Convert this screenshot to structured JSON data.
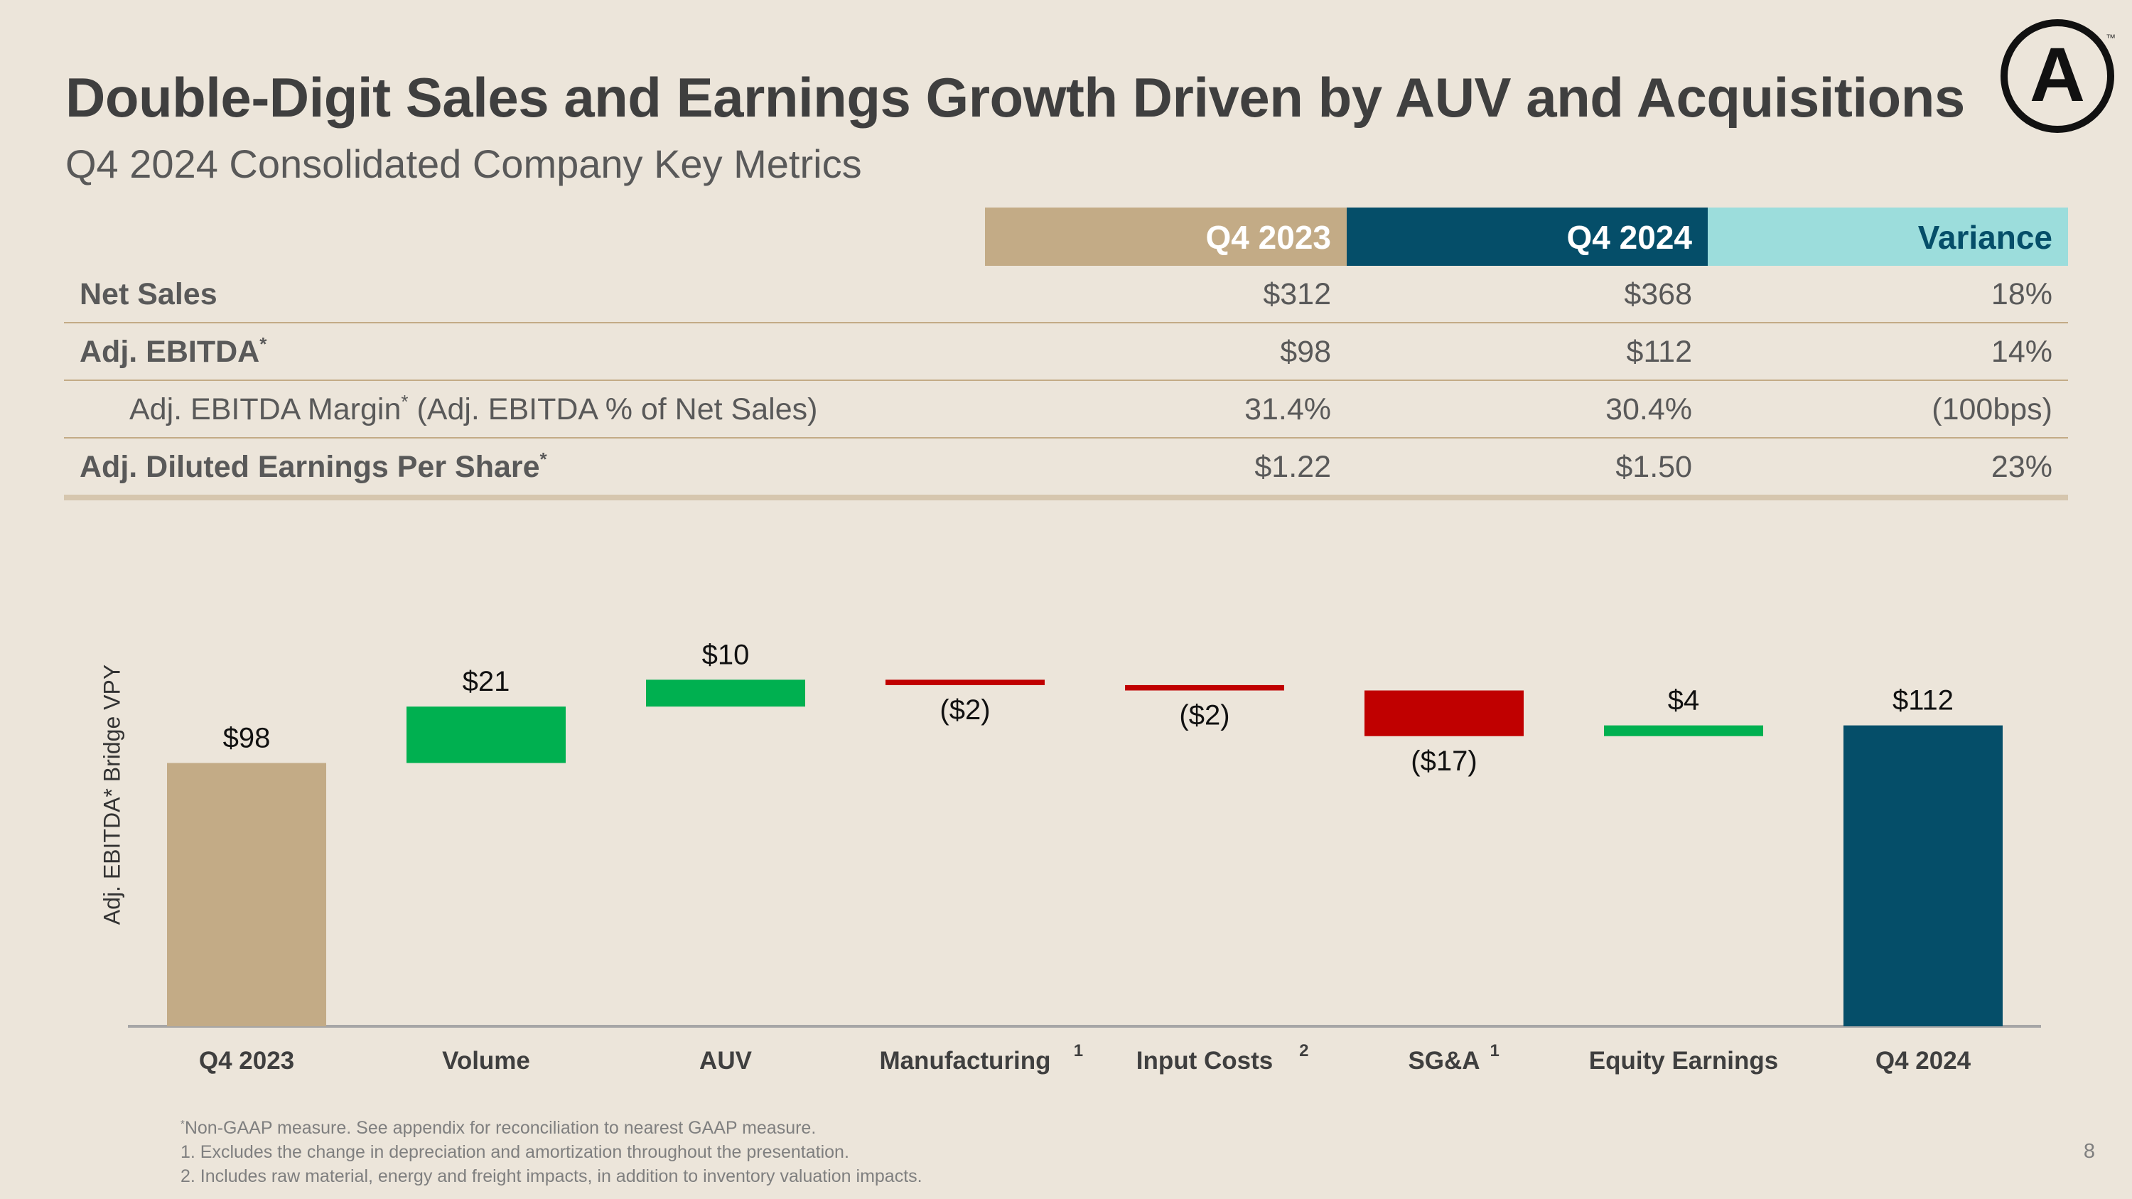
{
  "title": "Double-Digit Sales and Earnings Growth Driven by AUV and Acquisitions",
  "subtitle": "Q4 2024 Consolidated Company Key Metrics",
  "logo": {
    "icon": "circled-a-logo",
    "letter": "A",
    "mark": "™"
  },
  "table": {
    "columns": [
      "Q4 2023",
      "Q4 2024",
      "Variance"
    ],
    "rows": [
      {
        "label": "Net Sales",
        "sup": "",
        "indent": false,
        "values": [
          "$312",
          "$368",
          "18%"
        ]
      },
      {
        "label": "Adj. EBITDA",
        "sup": "*",
        "indent": false,
        "values": [
          "$98",
          "$112",
          "14%"
        ]
      },
      {
        "label": "Adj. EBITDA Margin",
        "sup": "*",
        "suffix": " (Adj. EBITDA % of Net Sales)",
        "indent": true,
        "values": [
          "31.4%",
          "30.4%",
          "(100bps)"
        ]
      },
      {
        "label": "Adj. Diluted Earnings Per Share",
        "sup": "*",
        "indent": false,
        "values": [
          "$1.22",
          "$1.50",
          "23%"
        ]
      }
    ]
  },
  "chart_data": {
    "type": "bar",
    "subtype": "waterfall",
    "ylabel": "Adj. EBITDA* Bridge VPY",
    "grid": false,
    "categories": [
      "Q4 2023",
      "Volume",
      "AUV",
      "Manufacturing",
      "Input Costs",
      "SG&A",
      "Equity Earnings",
      "Q4 2024"
    ],
    "category_footnotes": [
      "",
      "",
      "",
      "1",
      "2",
      "1",
      "",
      ""
    ],
    "values": [
      98,
      21,
      10,
      -2,
      -2,
      -17,
      4,
      112
    ],
    "kinds": [
      "total",
      "increase",
      "increase",
      "decrease",
      "decrease",
      "decrease",
      "increase",
      "total"
    ],
    "data_labels": [
      "$98",
      "$21",
      "$10",
      "($2)",
      "($2)",
      "($17)",
      "$4",
      "$112"
    ],
    "colors": {
      "start_total": "#C3AB86",
      "end_total": "#054E69",
      "increase": "#00B050",
      "decrease": "#C00000"
    }
  },
  "footnotes": [
    {
      "sup": "*",
      "text": "Non-GAAP measure. See appendix for reconciliation to nearest GAAP measure."
    },
    {
      "sup": "",
      "text": "1. Excludes the change in depreciation and amortization throughout the presentation."
    },
    {
      "sup": "",
      "text": "2. Includes raw material, energy and freight impacts, in addition to inventory valuation impacts."
    }
  ],
  "page_number": "8"
}
